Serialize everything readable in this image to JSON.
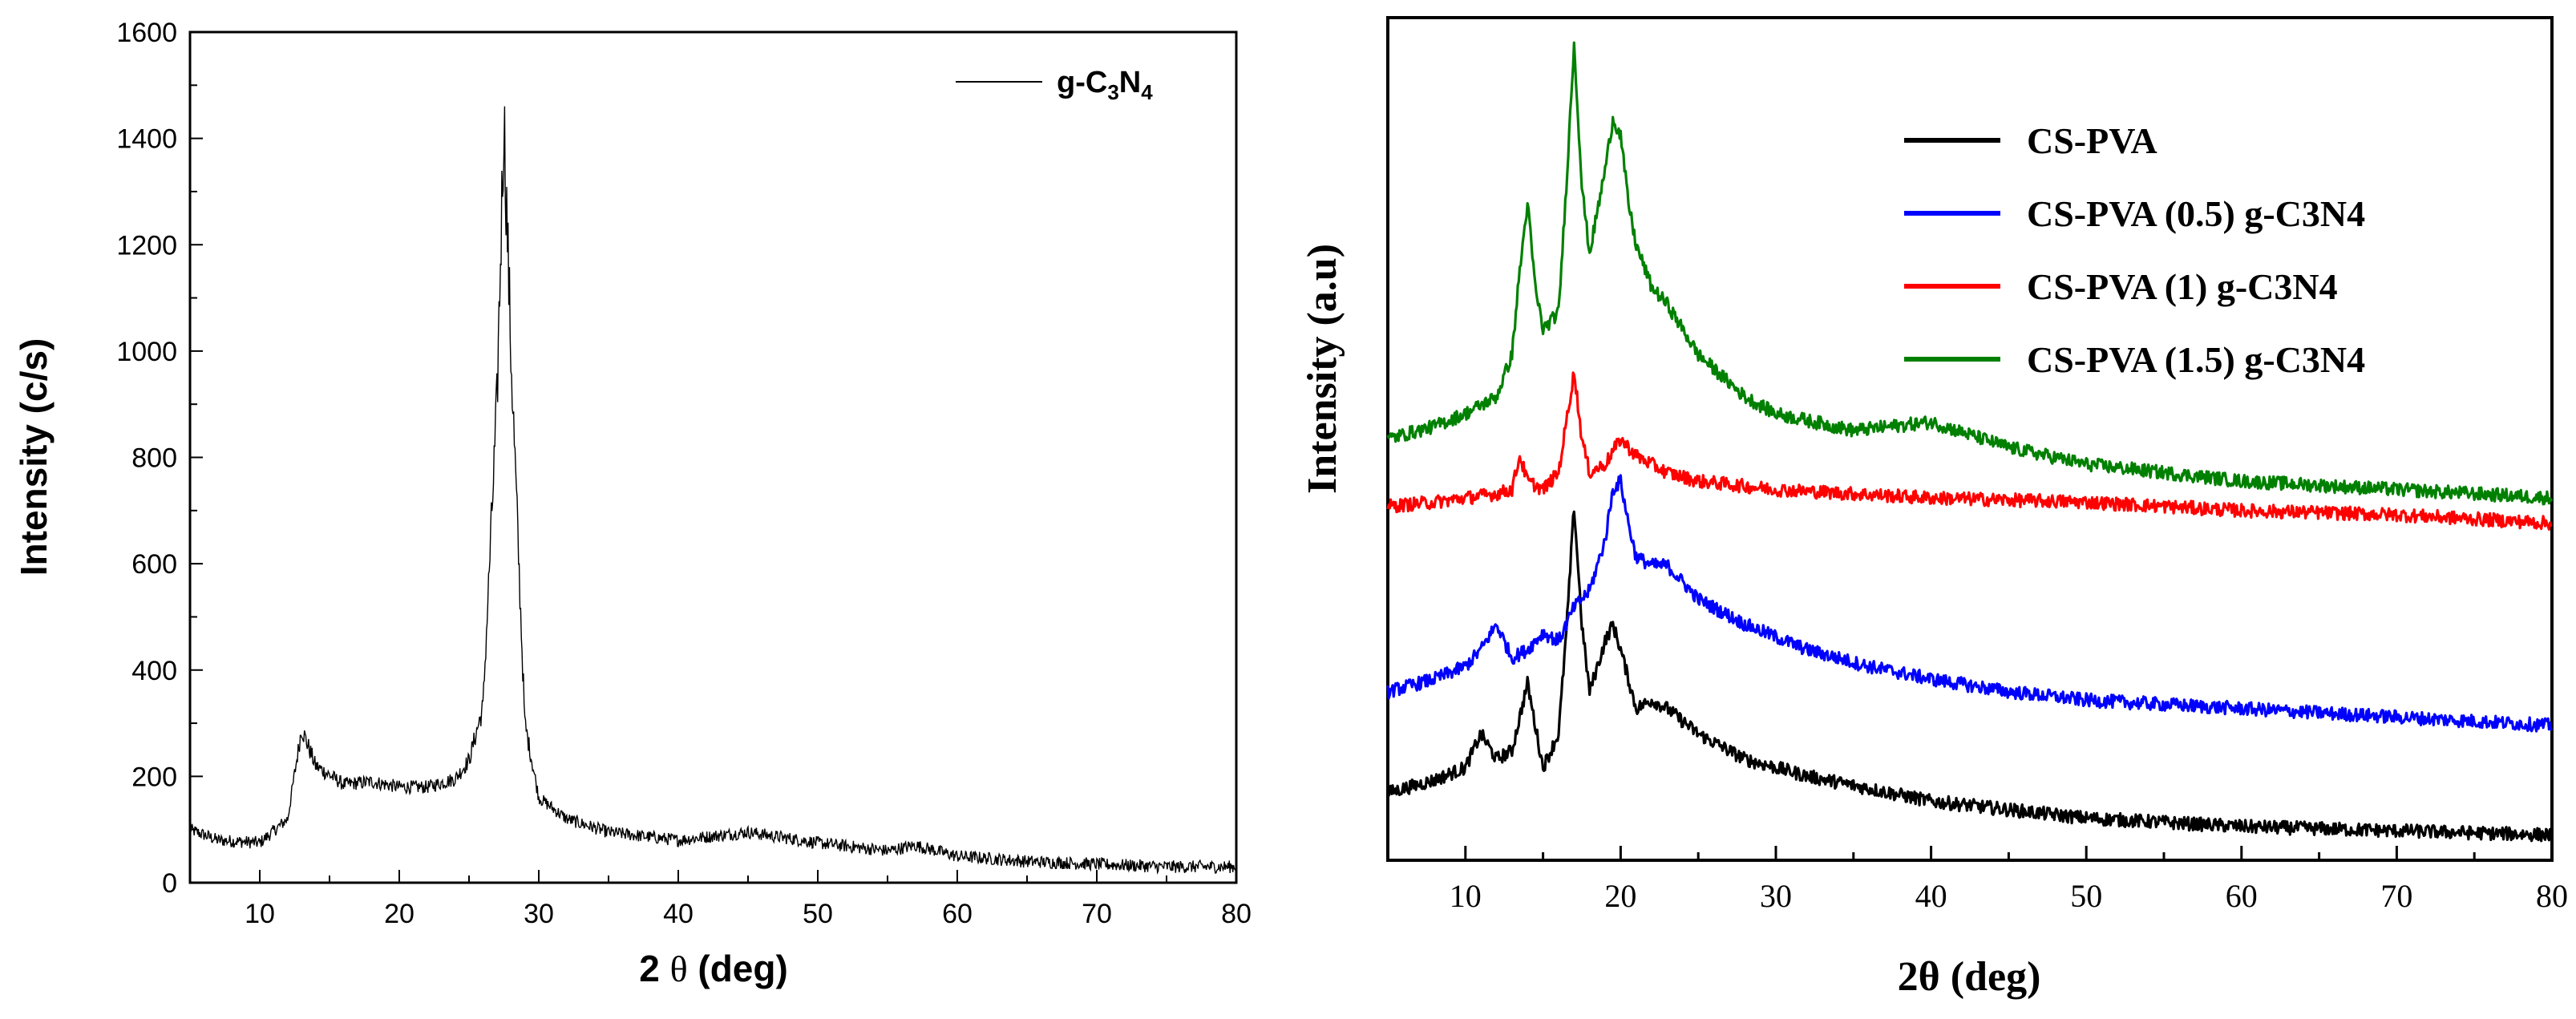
{
  "colors": {
    "black": "#000000",
    "blue": "#0000ff",
    "red": "#ff0000",
    "green": "#008000"
  },
  "chart_data": [
    {
      "type": "line",
      "title": "",
      "xlabel_prefix": "2 ",
      "xlabel_theta": "θ",
      "xlabel_suffix": " (deg)",
      "ylabel": "Intensity (c/s)",
      "xlim": [
        5,
        80
      ],
      "ylim": [
        0,
        1600
      ],
      "xticks": [
        10,
        20,
        30,
        40,
        50,
        60,
        70,
        80
      ],
      "yticks": [
        0,
        200,
        400,
        600,
        800,
        1000,
        1200,
        1400,
        1600
      ],
      "grid": false,
      "legend_position": "top-right",
      "series": [
        {
          "name_base": "g-C",
          "name_sub1": "3",
          "name_mid": "N",
          "name_sub2": "4",
          "color": "#000000",
          "description_points": {
            "x": [
              5,
              7,
              10,
              12,
              13,
              14,
              16,
              18,
              20,
              22,
              24,
              25,
              26,
              27,
              27.5,
              28,
              29,
              30,
              32,
              35,
              40,
              45,
              50,
              55,
              57,
              60,
              65,
              70,
              75,
              80
            ],
            "y": [
              100,
              80,
              75,
              120,
              290,
              220,
              185,
              190,
              180,
              180,
              195,
              230,
              330,
              900,
              1440,
              1000,
              300,
              160,
              120,
              95,
              80,
              95,
              75,
              60,
              70,
              50,
              40,
              35,
              30,
              30
            ]
          }
        }
      ]
    },
    {
      "type": "line",
      "title": "",
      "xlabel": "2θ (deg)",
      "ylabel": "Intensity (a.u)",
      "xlim": [
        5,
        80
      ],
      "ylim": [
        0,
        100
      ],
      "xticks": [
        10,
        20,
        30,
        40,
        50,
        60,
        70,
        80
      ],
      "yticks": [],
      "grid": false,
      "legend_position": "top-right",
      "series": [
        {
          "name": "CS-PVA",
          "color": "#000000",
          "x": [
            5,
            8,
            10,
            11,
            12,
            13,
            14,
            15,
            16,
            16.5,
            17,
            17.5,
            18,
            19,
            19.5,
            20,
            21,
            22,
            23,
            25,
            28,
            32,
            36,
            40,
            45,
            50,
            60,
            70,
            80
          ],
          "y": [
            8,
            9.5,
            11,
            15,
            12,
            13,
            21,
            11,
            15,
            27,
            42,
            28,
            20,
            26,
            28,
            25,
            18,
            19,
            18,
            15,
            12,
            10,
            8.5,
            7,
            6,
            5,
            4,
            3.5,
            3
          ]
        },
        {
          "name": "CS-PVA (0.5) g-C3N4",
          "color": "#0000ff",
          "x": [
            5,
            8,
            10,
            11,
            12,
            13,
            14,
            15,
            16,
            17,
            18,
            19,
            19.5,
            20,
            20.5,
            21,
            22,
            23,
            25,
            28,
            32,
            36,
            40,
            45,
            50,
            60,
            70,
            80
          ],
          "y": [
            20,
            21.5,
            23,
            25,
            28,
            24,
            25,
            27,
            26,
            30,
            32,
            38,
            44,
            45,
            40,
            36,
            35,
            35,
            31,
            28,
            25,
            23,
            21.5,
            20,
            19,
            18,
            17,
            16
          ]
        },
        {
          "name": "CS-PVA (1) g-C3N4",
          "color": "#ff0000",
          "x": [
            5,
            8,
            10,
            12,
            13,
            13.5,
            14,
            15,
            16,
            16.5,
            17,
            17.5,
            18,
            19,
            20,
            21,
            22,
            23,
            25,
            30,
            40,
            50,
            60,
            70,
            80
          ],
          "y": [
            42,
            42.5,
            43,
            43.5,
            44,
            48,
            45,
            44,
            46,
            52,
            58,
            50,
            46,
            47,
            50,
            48,
            47,
            46,
            45,
            44,
            43,
            42.5,
            41.5,
            41,
            40
          ]
        },
        {
          "name": "CS-PVA (1.5) g-C3N4",
          "color": "#008000",
          "x": [
            5,
            8,
            10,
            12,
            13,
            13.5,
            14,
            14.5,
            15,
            16,
            16.5,
            17,
            17.5,
            18,
            19,
            19.5,
            20,
            20.5,
            21,
            22,
            23,
            25,
            28,
            30,
            35,
            40,
            45,
            50,
            60,
            70,
            80
          ],
          "y": [
            50,
            51.5,
            53,
            55,
            60,
            70,
            78,
            68,
            63,
            65,
            80,
            97,
            80,
            72,
            82,
            88,
            86,
            78,
            73,
            68,
            66,
            60,
            55,
            53,
            51,
            52,
            49,
            47,
            45,
            44,
            43
          ]
        }
      ]
    }
  ]
}
